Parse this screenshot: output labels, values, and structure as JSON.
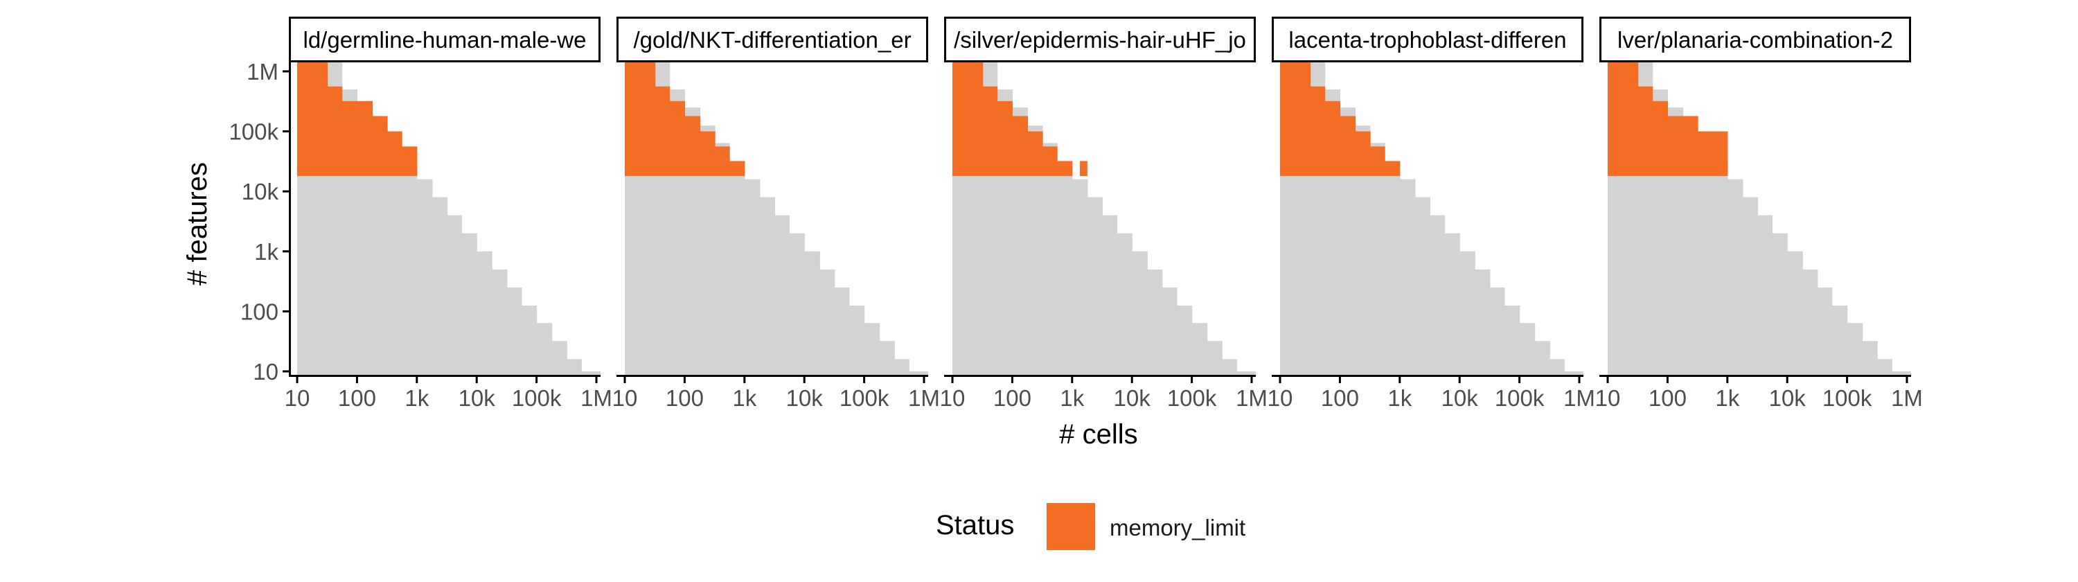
{
  "chart_data": {
    "type": "heatmap",
    "xlabel": "# cells",
    "ylabel": "# features",
    "x_scale": "log10",
    "y_scale": "log10",
    "xlim": [
      10,
      1000000
    ],
    "ylim": [
      10,
      1000000
    ],
    "x_ticks": [
      {
        "value": 10,
        "label": "10"
      },
      {
        "value": 100,
        "label": "100"
      },
      {
        "value": 1000,
        "label": "1k"
      },
      {
        "value": 10000,
        "label": "10k"
      },
      {
        "value": 100000,
        "label": "100k"
      },
      {
        "value": 1000000,
        "label": "1M"
      }
    ],
    "y_ticks": [
      {
        "value": 10,
        "label": "10"
      },
      {
        "value": 100,
        "label": "100"
      },
      {
        "value": 1000,
        "label": "1k"
      },
      {
        "value": 10000,
        "label": "10k"
      },
      {
        "value": 100000,
        "label": "100k"
      },
      {
        "value": 1000000,
        "label": "1M"
      }
    ],
    "grid": false,
    "background_color": "#d3d3d3",
    "status_colors": {
      "memory_limit": "#f46d25"
    },
    "legend": {
      "title": "Status",
      "position": "bottom",
      "entries": [
        "memory_limit"
      ]
    },
    "evaluated_region": {
      "description": "light-grey staircase: combinations tested",
      "x_range": [
        10,
        1000000
      ],
      "y_range": [
        10,
        1000000
      ],
      "max_features_at_cells": [
        {
          "x": 10,
          "y": 1000000
        },
        {
          "x": 32,
          "y": 1000000
        },
        {
          "x": 56,
          "y": 500000
        },
        {
          "x": 100,
          "y": 250000
        },
        {
          "x": 180,
          "y": 125000
        },
        {
          "x": 320,
          "y": 64000
        },
        {
          "x": 560,
          "y": 32000
        },
        {
          "x": 1000,
          "y": 16000
        },
        {
          "x": 1800,
          "y": 8000
        },
        {
          "x": 3200,
          "y": 4000
        },
        {
          "x": 5600,
          "y": 2000
        },
        {
          "x": 10000,
          "y": 1000
        },
        {
          "x": 18000,
          "y": 500
        },
        {
          "x": 32000,
          "y": 250
        },
        {
          "x": 56000,
          "y": 125
        },
        {
          "x": 100000,
          "y": 64
        },
        {
          "x": 180000,
          "y": 32
        },
        {
          "x": 320000,
          "y": 16
        },
        {
          "x": 560000,
          "y": 10
        }
      ]
    },
    "panels": [
      {
        "title": "ld/germline-human-male-we",
        "memory_limit": {
          "cell_edges": [
            10,
            32,
            56,
            100,
            180,
            320,
            560,
            1000
          ],
          "feature_min": 18000,
          "feature_max_per_column": [
            1000000,
            560000,
            320000,
            320000,
            180000,
            100000,
            56000
          ]
        }
      },
      {
        "title": "/gold/NKT-differentiation_er",
        "memory_limit": {
          "cell_edges": [
            10,
            32,
            56,
            100,
            180,
            320,
            560,
            1000
          ],
          "feature_min": 18000,
          "feature_max_per_column": [
            1000000,
            560000,
            320000,
            180000,
            100000,
            56000,
            32000
          ]
        }
      },
      {
        "title": "/silver/epidermis-hair-uHF_jo",
        "memory_limit": {
          "cell_edges": [
            10,
            32,
            56,
            100,
            180,
            320,
            560,
            1000
          ],
          "feature_min": 18000,
          "feature_max_per_column": [
            1000000,
            560000,
            320000,
            180000,
            100000,
            56000,
            32000
          ],
          "extra_points": [
            {
              "cells": [
                1350,
                1800
              ],
              "features": [
                18000,
                32000
              ]
            }
          ]
        }
      },
      {
        "title": "lacenta-trophoblast-differen",
        "memory_limit": {
          "cell_edges": [
            10,
            32,
            56,
            100,
            180,
            320,
            560,
            1000
          ],
          "feature_min": 18000,
          "feature_max_per_column": [
            1000000,
            560000,
            320000,
            180000,
            100000,
            56000,
            32000
          ]
        }
      },
      {
        "title": "lver/planaria-combination-2",
        "memory_limit": {
          "cell_edges": [
            10,
            32,
            56,
            100,
            180,
            320,
            560,
            1000
          ],
          "feature_min": 18000,
          "feature_max_per_column": [
            1000000,
            560000,
            320000,
            180000,
            180000,
            100000,
            100000
          ]
        }
      }
    ]
  }
}
